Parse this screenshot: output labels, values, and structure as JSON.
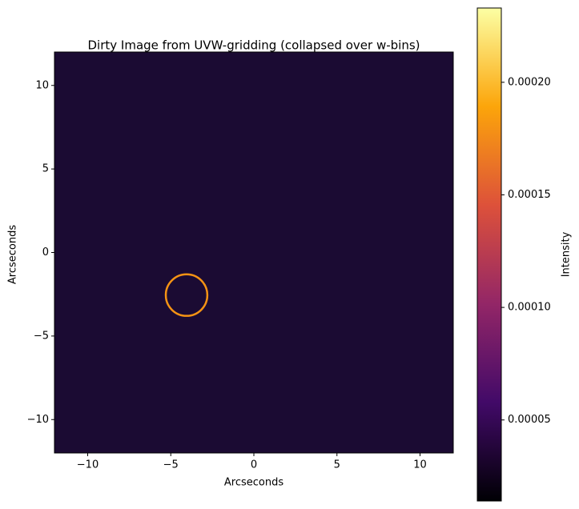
{
  "chart_data": {
    "type": "image",
    "title": "Dirty Image from UVW-gridding (collapsed over w-bins)",
    "x_label": "Arcseconds",
    "y_label": "Arcseconds",
    "xlim": [
      -12,
      12
    ],
    "ylim": [
      -12,
      12
    ],
    "xticks": [
      {
        "value": -10,
        "label": "−10"
      },
      {
        "value": -5,
        "label": "−5"
      },
      0,
      5,
      10
    ],
    "yticks": [
      {
        "value": -10,
        "label": "−10"
      },
      {
        "value": -5,
        "label": "−5"
      },
      0,
      5,
      10
    ],
    "background_color": "#1b0b33",
    "features": [
      {
        "x": -4.05,
        "y": -2.55,
        "radius": 1.25,
        "intensity": 0.00018
      }
    ],
    "colorbar": {
      "label": "Intensity",
      "lim": [
        1.4e-05,
        0.000233
      ],
      "ticks": [
        {
          "value": 5e-05,
          "label": "0.00005"
        },
        {
          "value": 0.0001,
          "label": "0.00010"
        },
        {
          "value": 0.00015,
          "label": "0.00015"
        },
        {
          "value": 0.0002,
          "label": "0.00020"
        }
      ],
      "colormap": [
        "#000004",
        "#420a68",
        "#932667",
        "#dd513a",
        "#fca50a",
        "#fcffa4"
      ]
    }
  }
}
